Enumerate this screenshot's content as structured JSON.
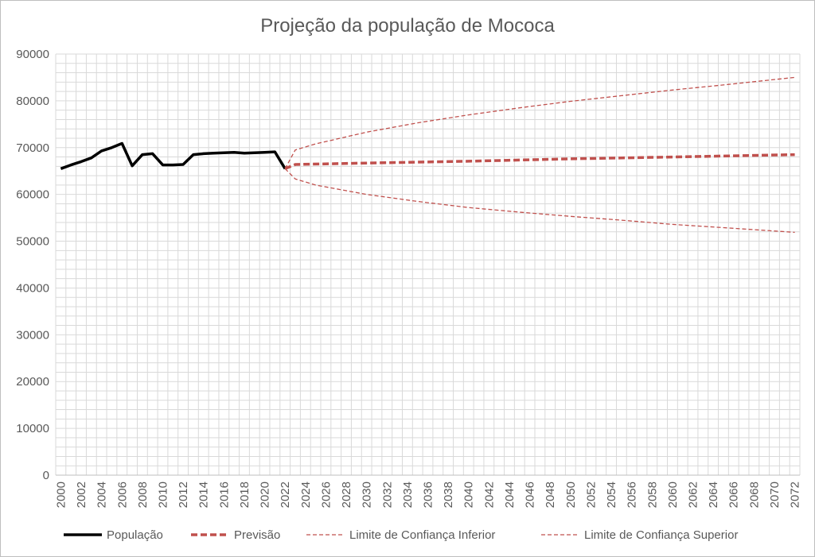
{
  "chart_data": {
    "type": "line",
    "title": "Projeção da  população de Mococa",
    "xlabel": "",
    "ylabel": "",
    "xlim": [
      2000,
      2072
    ],
    "ylim": [
      0,
      90000
    ],
    "y_ticks": [
      0,
      10000,
      20000,
      30000,
      40000,
      50000,
      60000,
      70000,
      80000,
      90000
    ],
    "x_ticks": [
      2000,
      2002,
      2004,
      2006,
      2008,
      2010,
      2012,
      2014,
      2016,
      2018,
      2020,
      2022,
      2024,
      2026,
      2028,
      2030,
      2032,
      2034,
      2036,
      2038,
      2040,
      2042,
      2044,
      2046,
      2048,
      2050,
      2052,
      2054,
      2056,
      2058,
      2060,
      2062,
      2064,
      2066,
      2068,
      2070,
      2072
    ],
    "grid": true,
    "legend_position": "bottom",
    "series": [
      {
        "name": "População",
        "color": "#000000",
        "style": "solid",
        "x": [
          2000,
          2001,
          2002,
          2003,
          2004,
          2005,
          2006,
          2007,
          2008,
          2009,
          2010,
          2011,
          2012,
          2013,
          2014,
          2015,
          2016,
          2017,
          2018,
          2019,
          2020,
          2021,
          2022
        ],
        "y": [
          65500,
          66300,
          67000,
          67800,
          69300,
          70000,
          70900,
          66100,
          68500,
          68700,
          66300,
          66300,
          66400,
          68500,
          68700,
          68800,
          68900,
          69000,
          68800,
          68900,
          69000,
          69100,
          65500
        ]
      },
      {
        "name": "Previsão",
        "color": "#c0504d",
        "style": "dashed-thick",
        "x": [
          2022,
          2023,
          2030,
          2040,
          2050,
          2060,
          2072
        ],
        "y": [
          65500,
          66400,
          66700,
          67100,
          67600,
          68000,
          68500
        ]
      },
      {
        "name": "Limite de Confiança Inferior",
        "color": "#c0504d",
        "style": "dashed-thin",
        "x": [
          2022,
          2023,
          2025,
          2030,
          2035,
          2040,
          2045,
          2050,
          2055,
          2060,
          2065,
          2072
        ],
        "y": [
          65500,
          63300,
          62000,
          60000,
          58500,
          57200,
          56200,
          55300,
          54500,
          53600,
          52900,
          51900
        ]
      },
      {
        "name": "Limite de Confiança Superior",
        "color": "#c0504d",
        "style": "dashed-thin",
        "x": [
          2022,
          2023,
          2025,
          2030,
          2035,
          2040,
          2045,
          2050,
          2055,
          2060,
          2065,
          2072
        ],
        "y": [
          65500,
          69500,
          70800,
          73300,
          75300,
          77000,
          78500,
          79900,
          81100,
          82300,
          83400,
          85000
        ]
      }
    ]
  }
}
